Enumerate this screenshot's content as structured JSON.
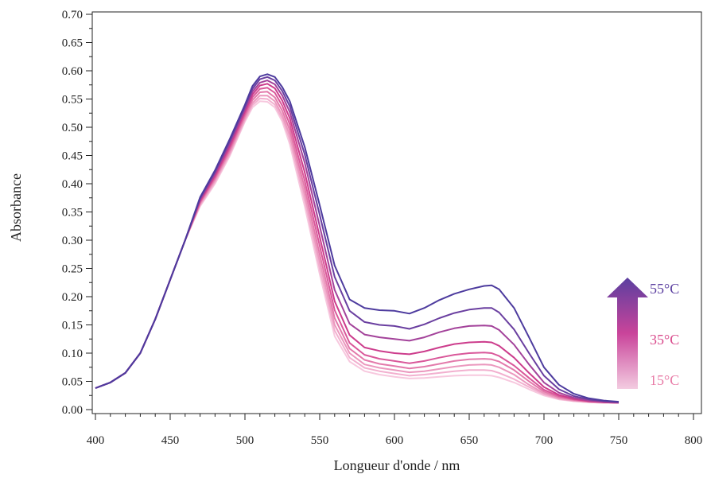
{
  "chart_data": {
    "type": "line",
    "xlabel": "Longueur d'onde / nm",
    "ylabel": "Absorbance",
    "xlim": [
      400,
      800
    ],
    "ylim": [
      0,
      0.7
    ],
    "x_ticks": [
      400,
      450,
      500,
      550,
      600,
      650,
      700,
      750,
      800
    ],
    "x_tick_labels": [
      "400",
      "450",
      "500",
      "550",
      "600",
      "650",
      "700",
      "750",
      "800"
    ],
    "y_ticks": [
      0,
      0.05,
      0.1,
      0.15,
      0.2,
      0.25,
      0.3,
      0.35,
      0.4,
      0.45,
      0.5,
      0.55,
      0.6,
      0.65,
      0.7
    ],
    "y_tick_labels": [
      "0.00",
      "0.05",
      "0.10",
      "0.15",
      "0.20",
      "0.25",
      "0.30",
      "0.35",
      "0.40",
      "0.45",
      "0.50",
      "0.55",
      "0.60",
      "0.65",
      "0.70"
    ],
    "grid": false,
    "x": [
      400,
      410,
      420,
      430,
      440,
      450,
      460,
      470,
      480,
      490,
      500,
      505,
      510,
      515,
      520,
      525,
      530,
      540,
      550,
      560,
      570,
      580,
      590,
      600,
      610,
      620,
      630,
      640,
      650,
      660,
      665,
      670,
      680,
      690,
      700,
      710,
      720,
      730,
      740,
      750
    ],
    "series": [
      {
        "color": "#f7c8de",
        "values": [
          0.038,
          0.048,
          0.065,
          0.1,
          0.16,
          0.23,
          0.3,
          0.36,
          0.4,
          0.45,
          0.51,
          0.535,
          0.546,
          0.545,
          0.535,
          0.51,
          0.47,
          0.36,
          0.24,
          0.13,
          0.085,
          0.068,
          0.062,
          0.058,
          0.055,
          0.056,
          0.058,
          0.06,
          0.061,
          0.061,
          0.06,
          0.057,
          0.048,
          0.036,
          0.025,
          0.018,
          0.015,
          0.013,
          0.012,
          0.012
        ]
      },
      {
        "color": "#f2b0cf",
        "values": [
          0.038,
          0.048,
          0.065,
          0.1,
          0.16,
          0.23,
          0.3,
          0.362,
          0.403,
          0.453,
          0.513,
          0.539,
          0.551,
          0.55,
          0.54,
          0.515,
          0.478,
          0.37,
          0.25,
          0.14,
          0.092,
          0.074,
          0.068,
          0.064,
          0.06,
          0.062,
          0.065,
          0.068,
          0.07,
          0.07,
          0.069,
          0.065,
          0.054,
          0.04,
          0.027,
          0.019,
          0.015,
          0.013,
          0.012,
          0.012
        ]
      },
      {
        "color": "#eb98be",
        "values": [
          0.038,
          0.048,
          0.065,
          0.1,
          0.16,
          0.23,
          0.3,
          0.364,
          0.406,
          0.456,
          0.516,
          0.543,
          0.556,
          0.556,
          0.546,
          0.521,
          0.486,
          0.38,
          0.262,
          0.15,
          0.1,
          0.08,
          0.074,
          0.07,
          0.066,
          0.068,
          0.072,
          0.076,
          0.079,
          0.08,
          0.079,
          0.075,
          0.062,
          0.044,
          0.029,
          0.02,
          0.016,
          0.014,
          0.013,
          0.012
        ]
      },
      {
        "color": "#e37aab",
        "values": [
          0.038,
          0.048,
          0.065,
          0.1,
          0.16,
          0.23,
          0.3,
          0.366,
          0.409,
          0.46,
          0.52,
          0.548,
          0.562,
          0.563,
          0.553,
          0.529,
          0.495,
          0.392,
          0.275,
          0.162,
          0.108,
          0.088,
          0.081,
          0.077,
          0.073,
          0.076,
          0.081,
          0.086,
          0.089,
          0.09,
          0.089,
          0.085,
          0.07,
          0.05,
          0.032,
          0.022,
          0.017,
          0.014,
          0.013,
          0.012
        ]
      },
      {
        "color": "#d9589a",
        "values": [
          0.038,
          0.048,
          0.065,
          0.1,
          0.16,
          0.23,
          0.3,
          0.368,
          0.412,
          0.464,
          0.524,
          0.553,
          0.568,
          0.57,
          0.561,
          0.538,
          0.505,
          0.405,
          0.29,
          0.176,
          0.118,
          0.097,
          0.09,
          0.086,
          0.082,
          0.086,
          0.092,
          0.097,
          0.1,
          0.101,
          0.1,
          0.095,
          0.078,
          0.056,
          0.035,
          0.024,
          0.018,
          0.015,
          0.013,
          0.012
        ]
      },
      {
        "color": "#cc3c8c",
        "values": [
          0.038,
          0.048,
          0.065,
          0.1,
          0.16,
          0.23,
          0.3,
          0.37,
          0.415,
          0.468,
          0.528,
          0.558,
          0.574,
          0.577,
          0.569,
          0.547,
          0.516,
          0.42,
          0.306,
          0.192,
          0.132,
          0.11,
          0.104,
          0.1,
          0.098,
          0.103,
          0.11,
          0.116,
          0.119,
          0.12,
          0.119,
          0.113,
          0.092,
          0.065,
          0.04,
          0.026,
          0.019,
          0.015,
          0.013,
          0.012
        ]
      },
      {
        "color": "#a3429a",
        "values": [
          0.038,
          0.048,
          0.065,
          0.1,
          0.16,
          0.23,
          0.3,
          0.372,
          0.418,
          0.472,
          0.532,
          0.563,
          0.579,
          0.583,
          0.576,
          0.556,
          0.527,
          0.437,
          0.325,
          0.212,
          0.152,
          0.133,
          0.128,
          0.125,
          0.122,
          0.128,
          0.137,
          0.144,
          0.148,
          0.149,
          0.148,
          0.141,
          0.115,
          0.08,
          0.048,
          0.03,
          0.021,
          0.016,
          0.014,
          0.013
        ]
      },
      {
        "color": "#6a3fa0",
        "values": [
          0.038,
          0.048,
          0.065,
          0.1,
          0.16,
          0.23,
          0.3,
          0.374,
          0.421,
          0.476,
          0.536,
          0.568,
          0.585,
          0.589,
          0.583,
          0.564,
          0.537,
          0.452,
          0.345,
          0.235,
          0.175,
          0.155,
          0.15,
          0.148,
          0.143,
          0.151,
          0.162,
          0.171,
          0.177,
          0.18,
          0.18,
          0.172,
          0.142,
          0.1,
          0.06,
          0.036,
          0.024,
          0.018,
          0.015,
          0.013
        ]
      },
      {
        "color": "#4d3b9e",
        "values": [
          0.038,
          0.048,
          0.065,
          0.1,
          0.16,
          0.23,
          0.3,
          0.376,
          0.424,
          0.48,
          0.54,
          0.573,
          0.59,
          0.594,
          0.589,
          0.571,
          0.546,
          0.465,
          0.362,
          0.255,
          0.195,
          0.18,
          0.176,
          0.175,
          0.17,
          0.18,
          0.194,
          0.205,
          0.213,
          0.219,
          0.22,
          0.213,
          0.18,
          0.128,
          0.075,
          0.044,
          0.028,
          0.02,
          0.016,
          0.014
        ]
      }
    ],
    "annotation": {
      "labels": [
        {
          "text": "55°C",
          "color": "#5b3fa0"
        },
        {
          "text": "35°C",
          "color": "#d94a8c"
        },
        {
          "text": "15°C",
          "color": "#e87aa6"
        }
      ],
      "arrow_colors": [
        "#5b3fa0",
        "#c9449a",
        "#f3cce0"
      ]
    }
  }
}
